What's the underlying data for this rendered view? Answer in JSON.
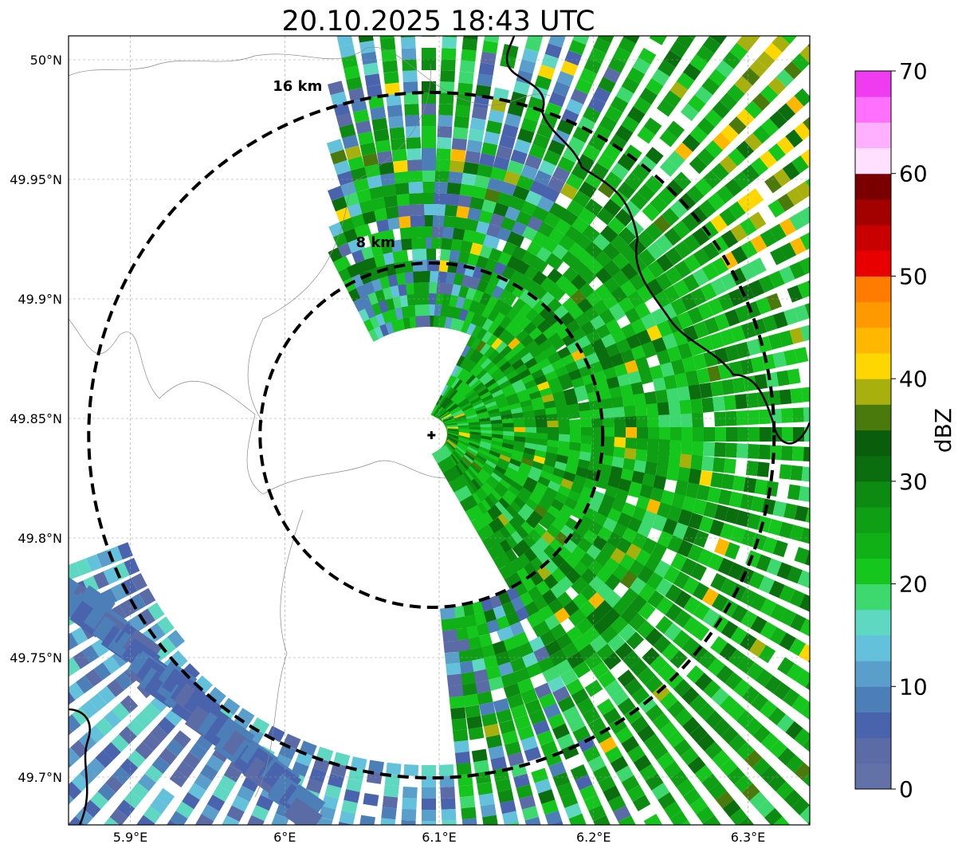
{
  "title": "20.10.2025 18:43 UTC",
  "map": {
    "lon_range": [
      5.86,
      6.34
    ],
    "lat_range": [
      49.68,
      50.01
    ],
    "x_ticks": [
      {
        "value": 5.9,
        "label": "5.9°E"
      },
      {
        "value": 6.0,
        "label": "6°E"
      },
      {
        "value": 6.1,
        "label": "6.1°E"
      },
      {
        "value": 6.2,
        "label": "6.2°E"
      },
      {
        "value": 6.3,
        "label": "6.3°E"
      }
    ],
    "y_ticks": [
      {
        "value": 50.0,
        "label": "50°N"
      },
      {
        "value": 49.95,
        "label": "49.95°N"
      },
      {
        "value": 49.9,
        "label": "49.9°N"
      },
      {
        "value": 49.85,
        "label": "49.85°N"
      },
      {
        "value": 49.8,
        "label": "49.8°N"
      },
      {
        "value": 49.75,
        "label": "49.75°N"
      },
      {
        "value": 49.7,
        "label": "49.7°N"
      }
    ],
    "grid": true,
    "radar_site": {
      "lon": 6.095,
      "lat": 49.843
    },
    "range_rings": [
      {
        "label": "8 km"
      },
      {
        "label": "16 km"
      }
    ]
  },
  "colorbar": {
    "label": "dBZ",
    "ticks": [
      "0",
      "10",
      "20",
      "30",
      "40",
      "50",
      "60",
      "70"
    ],
    "colors": [
      "#6272a9",
      "#5b6ba6",
      "#4a63ad",
      "#4c7fb8",
      "#5a9fcb",
      "#63c1db",
      "#5fd8c2",
      "#3dd86e",
      "#15c61c",
      "#10b017",
      "#0e9f14",
      "#0d8a12",
      "#0b6e0e",
      "#0a5e0b",
      "#4a7a0c",
      "#a8b00e",
      "#ffd700",
      "#ffb700",
      "#ff9900",
      "#ff7c00",
      "#e80000",
      "#c80000",
      "#a30000",
      "#7a0000",
      "#ffe0ff",
      "#ffb0ff",
      "#ff70ff",
      "#f03cf0"
    ]
  }
}
